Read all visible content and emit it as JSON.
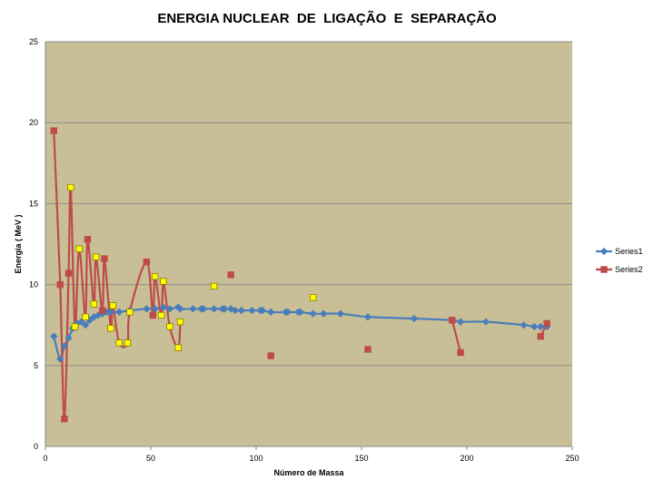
{
  "chart_data": {
    "type": "line",
    "title": "ENERGIA NUCLEAR  DE  LIGAÇÃO  E  SEPARAÇÃO",
    "xlabel": "Número de Massa",
    "ylabel": "Energia ( MeV )",
    "xlim": [
      0,
      250
    ],
    "ylim": [
      0,
      25
    ],
    "xticks": [
      0,
      50,
      100,
      150,
      200,
      250
    ],
    "yticks": [
      0,
      5,
      10,
      15,
      20,
      25
    ],
    "grid": true,
    "legend_position": "right",
    "plot_background": "#c9bf96",
    "series": [
      {
        "name": "Series1",
        "color": "#4a7ebb",
        "marker": "diamond",
        "segments": [
          [
            [
              4,
              6.8
            ],
            [
              7,
              5.4
            ],
            [
              9,
              6.2
            ],
            [
              11,
              6.7
            ],
            [
              13,
              7.3
            ],
            [
              15,
              7.6
            ],
            [
              17,
              7.7
            ],
            [
              19,
              7.5
            ],
            [
              21,
              7.8
            ],
            [
              23,
              8.0
            ],
            [
              25,
              8.1
            ],
            [
              27,
              8.2
            ],
            [
              29,
              8.3
            ],
            [
              31,
              8.3
            ],
            [
              35,
              8.3
            ],
            [
              40,
              8.4
            ],
            [
              48,
              8.5
            ],
            [
              52,
              8.5
            ],
            [
              56,
              8.6
            ],
            [
              59,
              8.5
            ],
            [
              63,
              8.6
            ],
            [
              64,
              8.5
            ],
            [
              70,
              8.5
            ],
            [
              74,
              8.5
            ],
            [
              75,
              8.5
            ],
            [
              80,
              8.5
            ],
            [
              84,
              8.5
            ],
            [
              85,
              8.5
            ],
            [
              88,
              8.5
            ],
            [
              90,
              8.4
            ],
            [
              93,
              8.4
            ],
            [
              98,
              8.4
            ],
            [
              102,
              8.4
            ],
            [
              103,
              8.4
            ],
            [
              107,
              8.3
            ],
            [
              114,
              8.3
            ],
            [
              115,
              8.3
            ],
            [
              120,
              8.3
            ],
            [
              121,
              8.3
            ],
            [
              127,
              8.2
            ],
            [
              132,
              8.2
            ],
            [
              140,
              8.2
            ],
            [
              153,
              8.0
            ],
            [
              175,
              7.9
            ],
            [
              193,
              7.8
            ],
            [
              197,
              7.7
            ],
            [
              209,
              7.7
            ],
            [
              227,
              7.5
            ],
            [
              232,
              7.4
            ],
            [
              235,
              7.4
            ],
            [
              238,
              7.4
            ]
          ]
        ]
      },
      {
        "name": "Series2",
        "color": "#be4b48",
        "marker": "square",
        "segments": [
          [
            [
              4,
              19.5
            ],
            [
              7,
              10.0
            ],
            [
              9,
              1.7
            ],
            [
              11,
              10.7
            ],
            [
              12,
              16.0
            ],
            [
              14,
              7.4
            ],
            [
              16,
              12.2
            ],
            [
              19,
              8.0
            ],
            [
              20,
              12.8
            ],
            [
              23,
              8.8
            ],
            [
              24,
              11.7
            ],
            [
              27,
              8.4
            ],
            [
              28,
              11.6
            ],
            [
              31,
              7.3
            ],
            [
              32,
              8.7
            ],
            [
              35,
              6.4
            ],
            [
              39,
              6.4
            ],
            [
              40,
              8.3
            ],
            [
              48,
              11.4
            ],
            [
              51,
              8.1
            ],
            [
              52,
              10.5
            ],
            [
              55,
              8.1
            ],
            [
              56,
              10.2
            ],
            [
              59,
              7.4
            ],
            [
              63,
              6.1
            ],
            [
              64,
              7.7
            ]
          ],
          [
            [
              193,
              7.8
            ],
            [
              197,
              5.8
            ]
          ],
          [
            [
              235,
              6.8
            ],
            [
              238,
              7.6
            ]
          ]
        ],
        "points": [
          [
            80,
            9.9
          ],
          [
            88,
            10.6
          ],
          [
            107,
            5.6
          ],
          [
            127,
            9.2
          ],
          [
            153,
            6.0
          ]
        ]
      }
    ],
    "highlighted_points": {
      "fill": "#ffff00",
      "stroke": "#8a7a00",
      "points": [
        [
          12,
          16.0
        ],
        [
          14,
          7.4
        ],
        [
          16,
          12.2
        ],
        [
          19,
          8.0
        ],
        [
          23,
          8.8
        ],
        [
          24,
          11.7
        ],
        [
          31,
          7.3
        ],
        [
          32,
          8.7
        ],
        [
          35,
          6.4
        ],
        [
          39,
          6.4
        ],
        [
          40,
          8.3
        ],
        [
          52,
          10.5
        ],
        [
          55,
          8.1
        ],
        [
          56,
          10.2
        ],
        [
          59,
          7.4
        ],
        [
          63,
          6.1
        ],
        [
          64,
          7.7
        ],
        [
          80,
          9.9
        ],
        [
          127,
          9.2
        ]
      ]
    }
  }
}
